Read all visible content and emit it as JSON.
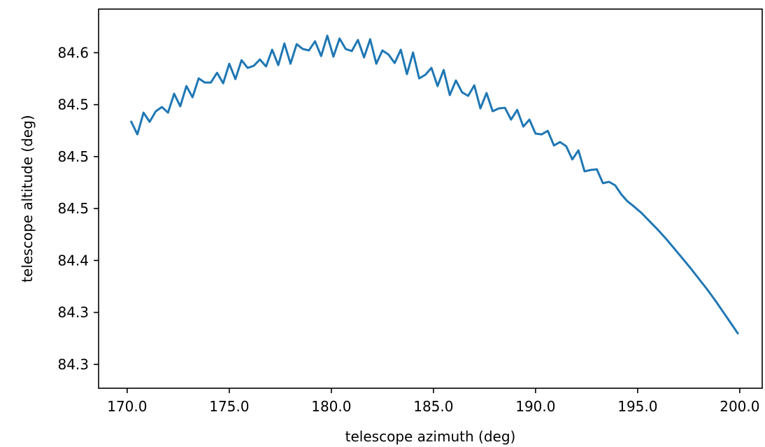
{
  "chart_data": {
    "type": "line",
    "title": "",
    "xlabel": "telescope azimuth (deg)",
    "ylabel": "telescope altitude (deg)",
    "xlim": [
      168.6,
      201.1
    ],
    "ylim": [
      84.277,
      84.642
    ],
    "x_ticks": [
      {
        "value": 170,
        "label": "170.0"
      },
      {
        "value": 175,
        "label": "175.0"
      },
      {
        "value": 180,
        "label": "180.0"
      },
      {
        "value": 185,
        "label": "185.0"
      },
      {
        "value": 190,
        "label": "190.0"
      },
      {
        "value": 195,
        "label": "195.0"
      },
      {
        "value": 200,
        "label": "200.0"
      }
    ],
    "y_ticks": [
      {
        "value": 84.3,
        "label": "84.3"
      },
      {
        "value": 84.35,
        "label": "84.3"
      },
      {
        "value": 84.4,
        "label": "84.4"
      },
      {
        "value": 84.45,
        "label": "84.5"
      },
      {
        "value": 84.5,
        "label": "84.5"
      },
      {
        "value": 84.55,
        "label": "84.5"
      },
      {
        "value": 84.6,
        "label": "84.6"
      }
    ],
    "grid": false,
    "series": [
      {
        "color": "#1f77b4",
        "x": [
          170.2,
          170.5,
          170.8,
          171.1,
          171.4,
          171.7,
          172.0,
          172.3,
          172.6,
          172.9,
          173.2,
          173.5,
          173.8,
          174.1,
          174.4,
          174.7,
          175.0,
          175.3,
          175.6,
          175.9,
          176.2,
          176.5,
          176.8,
          177.1,
          177.4,
          177.7,
          178.0,
          178.3,
          178.6,
          178.9,
          179.2,
          179.5,
          179.8,
          180.1,
          180.4,
          180.7,
          181.0,
          181.3,
          181.6,
          181.9,
          182.2,
          182.5,
          182.8,
          183.1,
          183.4,
          183.7,
          184.0,
          184.3,
          184.6,
          184.9,
          185.2,
          185.5,
          185.8,
          186.1,
          186.4,
          186.7,
          187.0,
          187.3,
          187.6,
          187.9,
          188.2,
          188.5,
          188.8,
          189.1,
          189.4,
          189.7,
          190.0,
          190.3,
          190.6,
          190.9,
          191.2,
          191.5,
          191.8,
          192.1,
          192.4,
          192.7,
          193.0,
          193.3,
          193.6,
          193.9,
          194.2,
          194.5,
          194.8,
          195.2,
          195.6,
          196.0,
          196.4,
          196.8,
          197.2,
          197.6,
          198.0,
          198.4,
          198.8,
          199.2,
          199.6,
          199.9
        ],
        "y": [
          84.5335,
          84.5214,
          84.5423,
          84.5335,
          84.5436,
          84.5477,
          84.5423,
          84.5605,
          84.5484,
          84.5679,
          84.5571,
          84.5753,
          84.5713,
          84.5713,
          84.5807,
          84.5706,
          84.5894,
          84.5746,
          84.5928,
          84.5854,
          84.5874,
          84.5935,
          84.5868,
          84.6029,
          84.5881,
          84.6089,
          84.5894,
          84.6083,
          84.6036,
          84.6022,
          84.611,
          84.5968,
          84.6164,
          84.5962,
          84.6137,
          84.6036,
          84.6016,
          84.6123,
          84.5955,
          84.613,
          84.5894,
          84.6022,
          84.5982,
          84.5901,
          84.6029,
          84.5794,
          84.6002,
          84.5753,
          84.5787,
          84.5854,
          84.5679,
          84.5834,
          84.5592,
          84.5733,
          84.5619,
          84.5585,
          84.5686,
          84.5464,
          84.5612,
          84.5437,
          84.5464,
          84.547,
          84.5356,
          84.545,
          84.5289,
          84.5356,
          84.5221,
          84.5214,
          84.5248,
          84.5107,
          84.514,
          84.51,
          84.4973,
          84.506,
          84.4858,
          84.4871,
          84.4878,
          84.4744,
          84.4757,
          84.4723,
          84.4636,
          84.457,
          84.4523,
          84.4455,
          84.4374,
          84.4294,
          84.4207,
          84.4113,
          84.4019,
          84.3924,
          84.3823,
          84.3723,
          84.3615,
          84.3501,
          84.3386,
          84.33
        ]
      }
    ]
  }
}
